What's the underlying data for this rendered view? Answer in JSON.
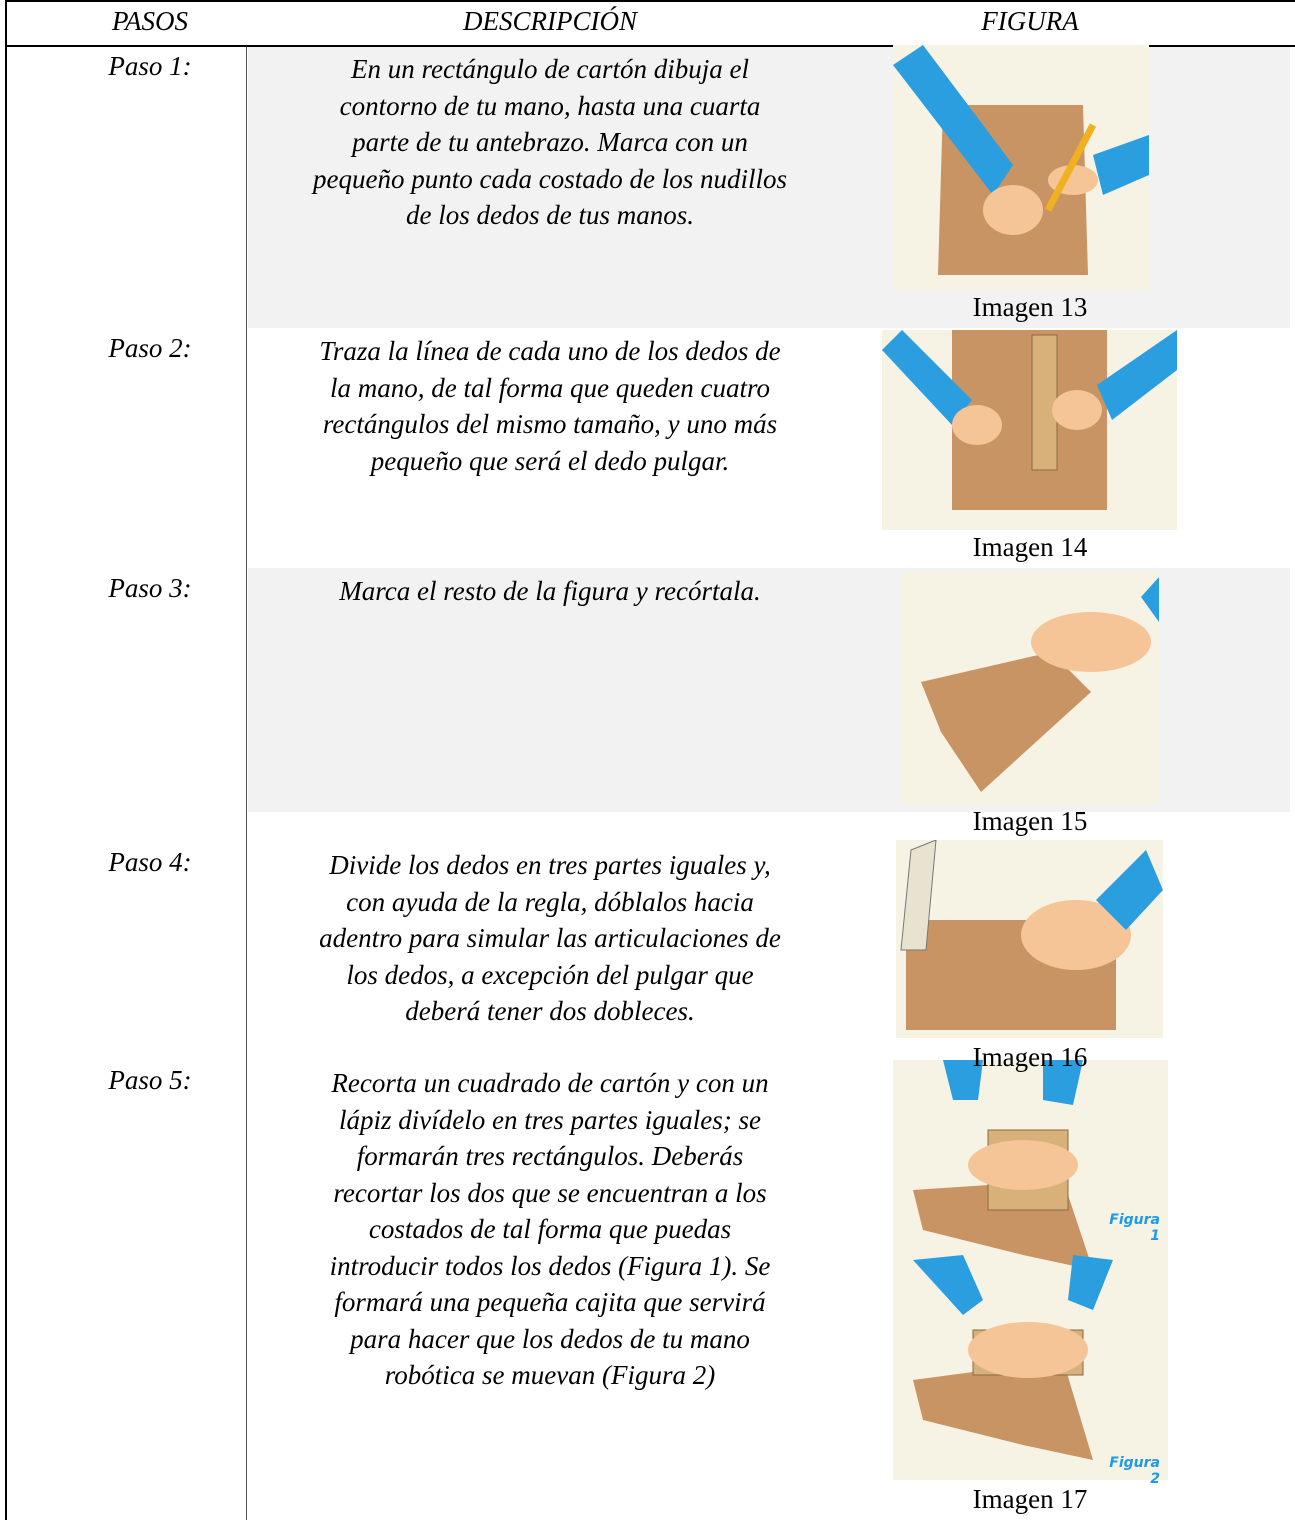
{
  "header": {
    "pasos": "PASOS",
    "descripcion": "DESCRIPCIÓN",
    "figura": "FIGURA"
  },
  "rows": [
    {
      "paso": "Paso 1:",
      "descripcion": [
        "En un rectángulo de cartón dibuja el",
        "contorno de tu mano, hasta una cuarta",
        "parte de tu antebrazo. Marca con un",
        "pequeño punto cada costado de los nudillos",
        "de los dedos de tus manos."
      ],
      "caption": "Imagen 13"
    },
    {
      "paso": "Paso 2:",
      "descripcion": [
        "Traza la línea de cada uno de los dedos de",
        "la mano, de tal forma que queden cuatro",
        "rectángulos del mismo tamaño, y uno más",
        "pequeño que será el dedo pulgar."
      ],
      "caption": "Imagen 14"
    },
    {
      "paso": "Paso 3:",
      "descripcion": [
        "Marca el resto de la figura y recórtala."
      ],
      "caption": "Imagen 15"
    },
    {
      "paso": "Paso 4:",
      "descripcion": [
        "Divide los dedos en tres partes iguales y,",
        "con ayuda de la regla, dóblalos hacia",
        "adentro para simular las articulaciones de",
        "los dedos, a excepción del pulgar que",
        "deberá tener dos dobleces."
      ],
      "caption": "Imagen 16"
    },
    {
      "paso": "Paso 5:",
      "descripcion": [
        "Recorta un cuadrado de cartón y con un",
        "lápiz divídelo en tres partes iguales; se",
        "formarán tres rectángulos. Deberás",
        "recortar los dos que se encuentran a los",
        "costados de tal forma que puedas",
        "introducir todos los dedos (Figura 1). Se",
        "formará una pequeña cajita que servirá",
        "para hacer que los dedos de tu mano",
        "robótica se muevan (Figura 2)"
      ],
      "caption": "Imagen 17",
      "figure_labels": [
        "Figura 1",
        "Figura 2"
      ]
    }
  ]
}
